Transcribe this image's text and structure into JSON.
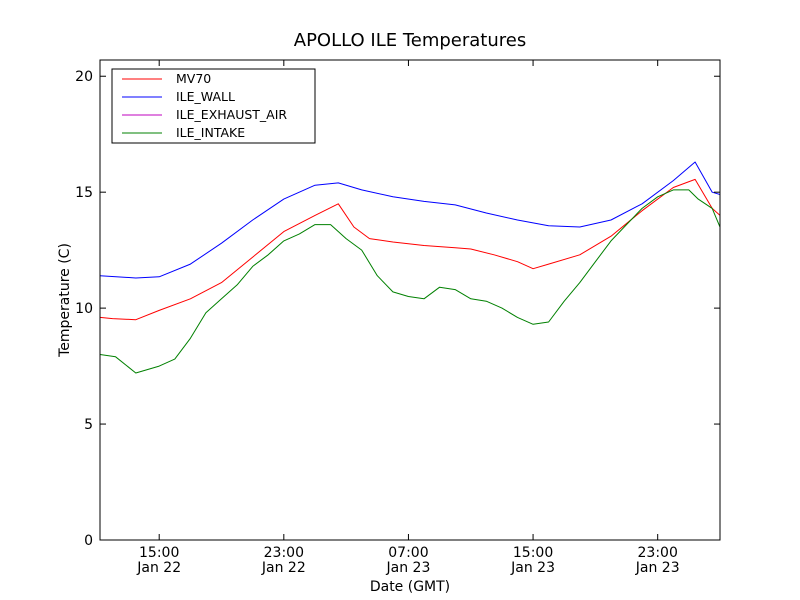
{
  "chart_data": {
    "type": "line",
    "title": "APOLLO ILE Temperatures",
    "xlabel": "Date (GMT)",
    "ylabel": "Temperature (C)",
    "ylim": [
      0,
      20.7
    ],
    "yticks": [
      0,
      5,
      10,
      15,
      20
    ],
    "xlim_hours": [
      -3.8,
      36.0
    ],
    "xticks": [
      {
        "hours": 0,
        "time": "15:00",
        "date": "Jan 22"
      },
      {
        "hours": 8,
        "time": "23:00",
        "date": "Jan 22"
      },
      {
        "hours": 16,
        "time": "07:00",
        "date": "Jan 23"
      },
      {
        "hours": 24,
        "time": "15:00",
        "date": "Jan 23"
      },
      {
        "hours": 32,
        "time": "23:00",
        "date": "Jan 23"
      }
    ],
    "grid": false,
    "legend": "top-left",
    "series": [
      {
        "name": "MV70",
        "color": "#ff0000",
        "points": [
          [
            -3.8,
            9.6
          ],
          [
            -3.0,
            9.55
          ],
          [
            -1.5,
            9.5
          ],
          [
            0,
            9.9
          ],
          [
            2,
            10.4
          ],
          [
            4,
            11.1
          ],
          [
            6,
            12.2
          ],
          [
            8,
            13.3
          ],
          [
            10,
            14.0
          ],
          [
            11.5,
            14.5
          ],
          [
            12.5,
            13.5
          ],
          [
            13.5,
            13.0
          ],
          [
            15,
            12.85
          ],
          [
            17,
            12.7
          ],
          [
            19,
            12.6
          ],
          [
            20,
            12.55
          ],
          [
            21.5,
            12.3
          ],
          [
            23,
            12.0
          ],
          [
            24,
            11.7
          ],
          [
            25,
            11.9
          ],
          [
            27,
            12.3
          ],
          [
            29,
            13.1
          ],
          [
            31,
            14.2
          ],
          [
            33,
            15.2
          ],
          [
            34.4,
            15.55
          ],
          [
            35.5,
            14.3
          ],
          [
            36,
            14.0
          ]
        ]
      },
      {
        "name": "ILE_WALL",
        "color": "#0000ff",
        "points": [
          [
            -3.8,
            11.4
          ],
          [
            -1.5,
            11.3
          ],
          [
            0,
            11.35
          ],
          [
            2,
            11.9
          ],
          [
            4,
            12.8
          ],
          [
            6,
            13.8
          ],
          [
            8,
            14.7
          ],
          [
            10,
            15.3
          ],
          [
            11.5,
            15.4
          ],
          [
            13,
            15.1
          ],
          [
            15,
            14.8
          ],
          [
            17,
            14.6
          ],
          [
            19,
            14.45
          ],
          [
            21,
            14.1
          ],
          [
            23,
            13.8
          ],
          [
            25,
            13.55
          ],
          [
            27,
            13.5
          ],
          [
            29,
            13.8
          ],
          [
            31,
            14.5
          ],
          [
            33,
            15.5
          ],
          [
            34.4,
            16.3
          ],
          [
            35.5,
            15.0
          ],
          [
            36,
            14.9
          ]
        ]
      },
      {
        "name": "ILE_EXHAUST_AIR",
        "color": "#bf00bf",
        "points": []
      },
      {
        "name": "ILE_INTAKE",
        "color": "#008000",
        "points": [
          [
            -3.8,
            8.0
          ],
          [
            -2.8,
            7.9
          ],
          [
            -1.5,
            7.2
          ],
          [
            0,
            7.5
          ],
          [
            1,
            7.8
          ],
          [
            2,
            8.7
          ],
          [
            3,
            9.8
          ],
          [
            4,
            10.4
          ],
          [
            5,
            11.0
          ],
          [
            6,
            11.8
          ],
          [
            7,
            12.3
          ],
          [
            8,
            12.9
          ],
          [
            9,
            13.2
          ],
          [
            10,
            13.6
          ],
          [
            11,
            13.6
          ],
          [
            12,
            13.0
          ],
          [
            13,
            12.5
          ],
          [
            14,
            11.4
          ],
          [
            15,
            10.7
          ],
          [
            16,
            10.5
          ],
          [
            17,
            10.4
          ],
          [
            18,
            10.9
          ],
          [
            19,
            10.8
          ],
          [
            20,
            10.4
          ],
          [
            21,
            10.3
          ],
          [
            22,
            10.0
          ],
          [
            23,
            9.6
          ],
          [
            24,
            9.3
          ],
          [
            25,
            9.4
          ],
          [
            26,
            10.3
          ],
          [
            27,
            11.1
          ],
          [
            28,
            12.0
          ],
          [
            29,
            12.9
          ],
          [
            30,
            13.6
          ],
          [
            31,
            14.3
          ],
          [
            32,
            14.8
          ],
          [
            33,
            15.1
          ],
          [
            34,
            15.1
          ],
          [
            34.6,
            14.7
          ],
          [
            35.5,
            14.3
          ],
          [
            36,
            13.5
          ]
        ]
      }
    ]
  }
}
